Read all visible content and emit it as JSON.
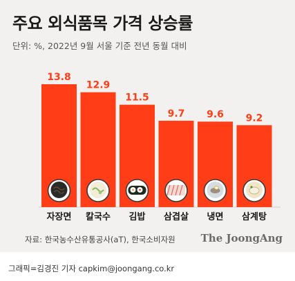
{
  "title": "주요 외식품목 가격 상승률",
  "subtitle": "단위: %, 2022년 9월 서울 기준 전년 동월 대비",
  "source": "자료: 한국농수산유통공사(aT), 한국소비자원",
  "brand": "The JoongAng",
  "credit": "그래픽=김경진 기자 capkim@joongang.co.kr",
  "colors": {
    "bar": "#ff3d17",
    "value_label": "#ff3d17",
    "background": "#f2f1ef"
  },
  "chart_data": {
    "type": "bar",
    "categories": [
      "자장면",
      "칼국수",
      "김밥",
      "삼겹살",
      "냉면",
      "삼계탕"
    ],
    "values": [
      13.8,
      12.9,
      11.5,
      9.7,
      9.6,
      9.2
    ],
    "title": "주요 외식품목 가격 상승률",
    "xlabel": "",
    "ylabel": "",
    "ylim": [
      0,
      13.8
    ],
    "grid": false,
    "legend": "none",
    "icons": [
      "jajangmyeon-icon",
      "kalguksu-icon",
      "gimbap-icon",
      "samgyeopsal-icon",
      "naengmyeon-icon",
      "samgyetang-icon"
    ]
  }
}
